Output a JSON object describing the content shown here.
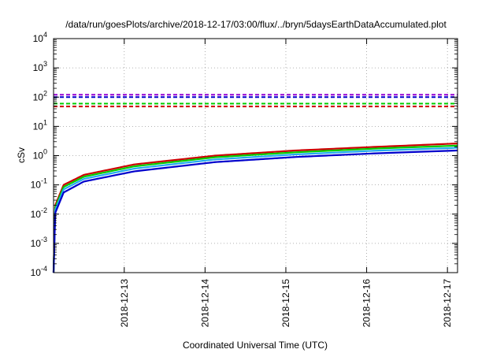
{
  "chart_data": {
    "type": "line",
    "title": "/data/run/goesPlots/archive/2018-12-17/03:00/flux/../bryn/5daysEarthDataAccumulated.plot",
    "xlabel": "Coordinated Universal Time (UTC)",
    "ylabel": "cSv",
    "y_scale": "log",
    "ylim": [
      0.0001,
      10000
    ],
    "y_ticks": [
      {
        "value": 0.0001,
        "base": "10",
        "exp": "-4"
      },
      {
        "value": 0.001,
        "base": "10",
        "exp": "-3"
      },
      {
        "value": 0.01,
        "base": "10",
        "exp": "-2"
      },
      {
        "value": 0.1,
        "base": "10",
        "exp": "-1"
      },
      {
        "value": 1,
        "base": "10",
        "exp": "0"
      },
      {
        "value": 10,
        "base": "10",
        "exp": "1"
      },
      {
        "value": 100,
        "base": "10",
        "exp": "2"
      },
      {
        "value": 1000,
        "base": "10",
        "exp": "3"
      },
      {
        "value": 10000,
        "base": "10",
        "exp": "4"
      }
    ],
    "x_type": "date",
    "xlim": [
      "2018-12-12 03:00",
      "2018-12-17 03:00"
    ],
    "x_ticks": [
      "2018-12-13",
      "2018-12-14",
      "2018-12-15",
      "2018-12-16",
      "2018-12-17"
    ],
    "grid": true,
    "legend": "none",
    "series": [
      {
        "color": "#cc0000",
        "style": "solid",
        "x": [
          "2018-12-12 03:00",
          "2018-12-12 03:30",
          "2018-12-12 06:00",
          "2018-12-12 12:00",
          "2018-12-13 03:00",
          "2018-12-14 03:00",
          "2018-12-15 03:00",
          "2018-12-16 03:00",
          "2018-12-17 03:00"
        ],
        "values": [
          0.0001,
          0.02,
          0.1,
          0.22,
          0.5,
          1.0,
          1.5,
          2.0,
          2.6
        ]
      },
      {
        "color": "#00cc00",
        "style": "solid",
        "x": [
          "2018-12-12 03:00",
          "2018-12-12 03:30",
          "2018-12-12 06:00",
          "2018-12-12 12:00",
          "2018-12-13 03:00",
          "2018-12-14 03:00",
          "2018-12-15 03:00",
          "2018-12-16 03:00",
          "2018-12-17 03:00"
        ],
        "values": [
          0.0001,
          0.017,
          0.085,
          0.19,
          0.43,
          0.88,
          1.3,
          1.75,
          2.2
        ]
      },
      {
        "color": "#22aaee",
        "style": "solid",
        "x": [
          "2018-12-12 03:00",
          "2018-12-12 03:30",
          "2018-12-12 06:00",
          "2018-12-12 12:00",
          "2018-12-13 03:00",
          "2018-12-14 03:00",
          "2018-12-15 03:00",
          "2018-12-16 03:00",
          "2018-12-17 03:00"
        ],
        "values": [
          0.0001,
          0.014,
          0.07,
          0.16,
          0.36,
          0.74,
          1.1,
          1.48,
          1.85
        ]
      },
      {
        "color": "#0000cc",
        "style": "solid",
        "x": [
          "2018-12-12 03:00",
          "2018-12-12 03:30",
          "2018-12-12 06:00",
          "2018-12-12 12:00",
          "2018-12-13 03:00",
          "2018-12-14 03:00",
          "2018-12-15 03:00",
          "2018-12-16 03:00",
          "2018-12-17 03:00"
        ],
        "values": [
          0.0001,
          0.011,
          0.055,
          0.13,
          0.29,
          0.6,
          0.9,
          1.2,
          1.5
        ]
      }
    ],
    "reference_lines": [
      {
        "color": "#9400d3",
        "style": "dashed",
        "value": 120
      },
      {
        "color": "#0000cc",
        "style": "dashed",
        "value": 100
      },
      {
        "color": "#00cc00",
        "style": "dashed",
        "value": 60
      },
      {
        "color": "#cc0000",
        "style": "dashed",
        "value": 48
      }
    ]
  }
}
